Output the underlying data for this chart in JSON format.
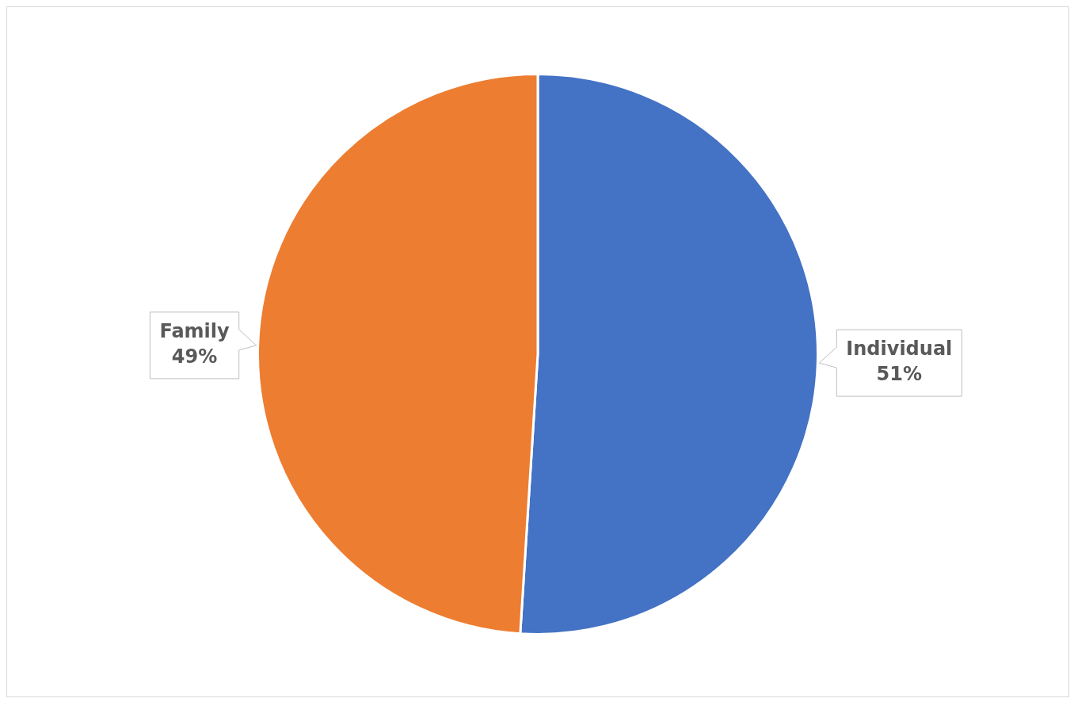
{
  "chart_data": {
    "type": "pie",
    "categories": [
      "Individual",
      "Family"
    ],
    "values": [
      51,
      49
    ],
    "colors": [
      "#4472c4",
      "#ed7d31"
    ],
    "value_labels": [
      "51%",
      "49%"
    ],
    "legend": false
  }
}
